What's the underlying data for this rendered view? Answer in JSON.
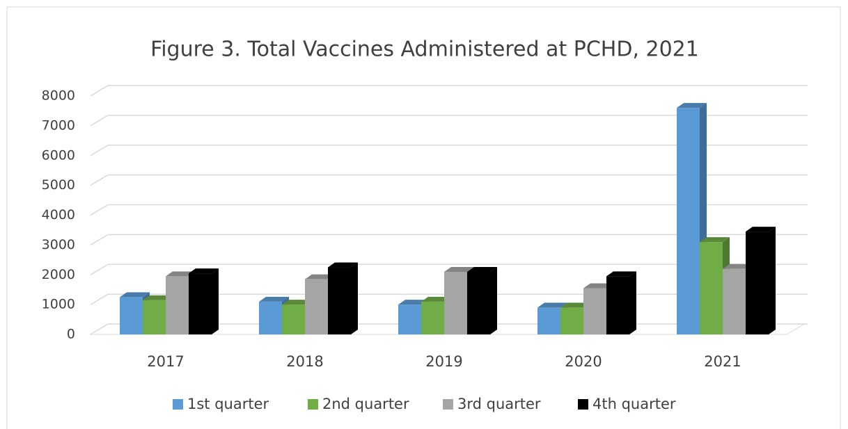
{
  "chart_data": {
    "type": "bar3d",
    "title": "Figure 3. Total Vaccines Administered at PCHD, 2021",
    "categories": [
      "2017",
      "2018",
      "2019",
      "2020",
      "2021"
    ],
    "series": [
      {
        "name": "1st quarter",
        "color": "#5b9bd5",
        "values": [
          1250,
          1100,
          1000,
          900,
          7600
        ]
      },
      {
        "name": "2nd quarter",
        "color": "#70ad47",
        "values": [
          1150,
          1000,
          1100,
          900,
          3100
        ]
      },
      {
        "name": "3rd quarter",
        "color": "#a5a5a5",
        "values": [
          1950,
          1850,
          2100,
          1550,
          2200
        ]
      },
      {
        "name": "4th quarter",
        "color": "#000000",
        "values": [
          2050,
          2250,
          2100,
          1950,
          3450
        ]
      }
    ],
    "ylim": [
      0,
      8000
    ],
    "yticks": [
      0,
      1000,
      2000,
      3000,
      4000,
      5000,
      6000,
      7000,
      8000
    ],
    "grid": true,
    "legend": "bottom"
  }
}
